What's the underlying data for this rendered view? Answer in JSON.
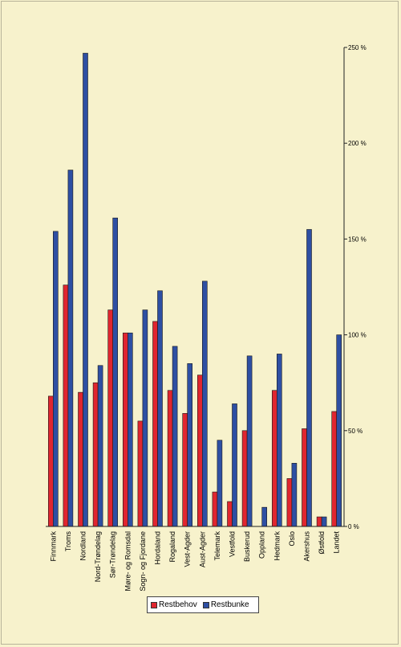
{
  "chart_data": {
    "type": "bar",
    "categories": [
      "Finnmark",
      "Troms",
      "Nordland",
      "Nord-Trøndelag",
      "Sør-Trøndelag",
      "Møre- og Romsdal",
      "Sogn- og Fjordane",
      "Hordaland",
      "Rogaland",
      "Vest-Agder",
      "Aust-Agder",
      "Telemark",
      "Vestfold",
      "Buskerud",
      "Oppland",
      "Hedmark",
      "Oslo",
      "Akershus",
      "Østfold",
      "Landet"
    ],
    "series": [
      {
        "name": "Restbehov",
        "color": "#e0262f",
        "values": [
          68,
          126,
          70,
          75,
          113,
          101,
          55,
          107,
          71,
          59,
          79,
          18,
          13,
          50,
          0,
          71,
          25,
          51,
          5,
          60
        ]
      },
      {
        "name": "Restbunke",
        "color": "#2e4fa3",
        "values": [
          154,
          186,
          247,
          84,
          161,
          101,
          113,
          123,
          94,
          85,
          128,
          45,
          64,
          89,
          10,
          90,
          33,
          155,
          5,
          100
        ]
      }
    ],
    "y_axis": {
      "position": "right",
      "ylim": [
        0,
        250
      ],
      "ticks": [
        0,
        50,
        100,
        150,
        200,
        250
      ],
      "tick_labels": [
        "0 %",
        "50 %",
        "100 %",
        "150 %",
        "200 %",
        "250 %"
      ]
    },
    "grid": false,
    "legend": {
      "position": "bottom-center"
    },
    "title": "",
    "xlabel": "",
    "ylabel": ""
  }
}
